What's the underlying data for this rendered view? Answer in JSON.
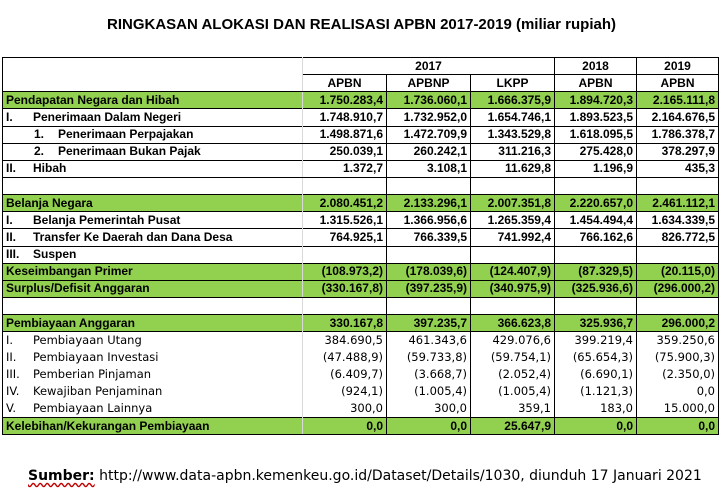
{
  "title": "RINGKASAN ALOKASI DAN REALISASI APBN 2017-2019 (miliar rupiah)",
  "headers": {
    "years": [
      "2017",
      "2018",
      "2019"
    ],
    "cols": [
      "APBN",
      "APBNP",
      "LKPP",
      "APBN",
      "APBN"
    ]
  },
  "rows": [
    {
      "num": "",
      "label": "Pendapatan Negara dan Hibah",
      "values": [
        "1.750.283,4",
        "1.736.060,1",
        "1.666.375,9",
        "1.894.720,3",
        "2.165.111,8"
      ]
    },
    {
      "num": "I.",
      "label": "Penerimaan Dalam Negeri",
      "values": [
        "1.748.910,7",
        "1.732.952,0",
        "1.654.746,1",
        "1.893.523,5",
        "2.164.676,5"
      ]
    },
    {
      "num": "1.",
      "label": "Penerimaan Perpajakan",
      "values": [
        "1.498.871,6",
        "1.472.709,9",
        "1.343.529,8",
        "1.618.095,5",
        "1.786.378,7"
      ]
    },
    {
      "num": "2.",
      "label": "Penerimaan Bukan Pajak",
      "values": [
        "250.039,1",
        "260.242,1",
        "311.216,3",
        "275.428,0",
        "378.297,9"
      ]
    },
    {
      "num": "II.",
      "label": "Hibah",
      "values": [
        "1.372,7",
        "3.108,1",
        "11.629,8",
        "1.196,9",
        "435,3"
      ]
    },
    {
      "num": "",
      "label": "",
      "values": [
        "",
        "",
        "",
        "",
        ""
      ]
    },
    {
      "num": "",
      "label": "Belanja Negara",
      "values": [
        "2.080.451,2",
        "2.133.296,1",
        "2.007.351,8",
        "2.220.657,0",
        "2.461.112,1"
      ]
    },
    {
      "num": "I.",
      "label": "Belanja Pemerintah Pusat",
      "values": [
        "1.315.526,1",
        "1.366.956,6",
        "1.265.359,4",
        "1.454.494,4",
        "1.634.339,5"
      ]
    },
    {
      "num": "II.",
      "label": "Transfer Ke Daerah dan Dana Desa",
      "values": [
        "764.925,1",
        "766.339,5",
        "741.992,4",
        "766.162,6",
        "826.772,5"
      ]
    },
    {
      "num": "III.",
      "label": "Suspen",
      "values": [
        "",
        "",
        "",
        "",
        ""
      ]
    },
    {
      "num": "",
      "label": "Keseimbangan Primer",
      "values": [
        "(108.973,2)",
        "(178.039,6)",
        "(124.407,9)",
        "(87.329,5)",
        "(20.115,0)"
      ]
    },
    {
      "num": "",
      "label": "Surplus/Defisit Anggaran",
      "values": [
        "(330.167,8)",
        "(397.235,9)",
        "(340.975,9)",
        "(325.936,6)",
        "(296.000,2)"
      ]
    },
    {
      "num": "",
      "label": "",
      "values": [
        "",
        "",
        "",
        "",
        ""
      ]
    },
    {
      "num": "",
      "label": "Pembiayaan Anggaran",
      "values": [
        "330.167,8",
        "397.235,7",
        "366.623,8",
        "325.936,7",
        "296.000,2"
      ]
    },
    {
      "num": "I.",
      "label": "Pembiayaan Utang",
      "values": [
        "384.690,5",
        "461.343,6",
        "429.076,6",
        "399.219,4",
        "359.250,6"
      ]
    },
    {
      "num": "II.",
      "label": "Pembiayaan Investasi",
      "values": [
        "(47.488,9)",
        "(59.733,8)",
        "(59.754,1)",
        "(65.654,3)",
        "(75.900,3)"
      ]
    },
    {
      "num": "III.",
      "label": "Pemberian Pinjaman",
      "values": [
        "(6.409,7)",
        "(3.668,7)",
        "(2.052,4)",
        "(6.690,1)",
        "(2.350,0)"
      ]
    },
    {
      "num": "IV.",
      "label": "Kewajiban Penjaminan",
      "values": [
        "(924,1)",
        "(1.005,4)",
        "(1.005,4)",
        "(1.121,3)",
        "0,0"
      ]
    },
    {
      "num": "V.",
      "label": "Pembiayaan Lainnya",
      "values": [
        "300,0",
        "300,0",
        "359,1",
        "183,0",
        "15.000,0"
      ]
    },
    {
      "num": "",
      "label": "Kelebihan/Kekurangan Pembiayaan",
      "values": [
        "0,0",
        "0,0",
        "25.647,9",
        "0,0",
        "0,0"
      ]
    }
  ],
  "source": {
    "label": "Sumber:",
    "text": "http://www.data-apbn.kemenkeu.go.id/Dataset/Details/1030, diunduh 17 Januari 2021"
  }
}
